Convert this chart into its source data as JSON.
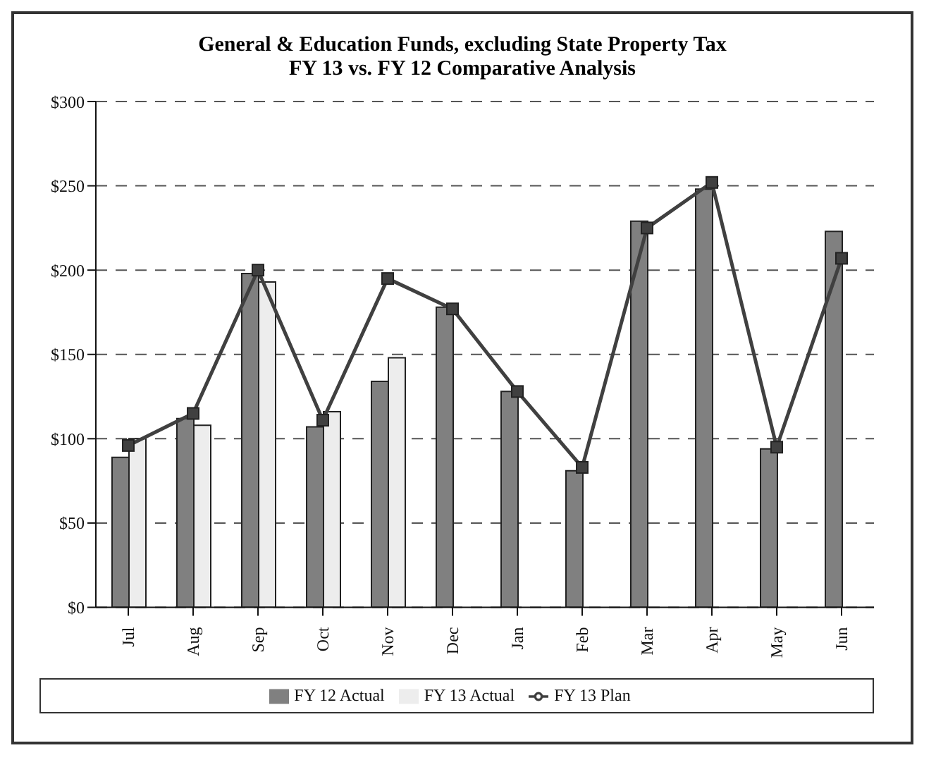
{
  "chart_data": {
    "type": "bar",
    "title": "General & Education Funds, excluding State Property Tax",
    "subtitle": "FY 13 vs. FY 12 Comparative Analysis",
    "categories": [
      "Jul",
      "Aug",
      "Sep",
      "Oct",
      "Nov",
      "Dec",
      "Jan",
      "Feb",
      "Mar",
      "Apr",
      "May",
      "Jun"
    ],
    "series": [
      {
        "name": "FY 12 Actual",
        "color": "#808080",
        "values": [
          89,
          112,
          198,
          107,
          134,
          178,
          128,
          81,
          229,
          248,
          94,
          223
        ]
      },
      {
        "name": "FY 13 Actual",
        "color": "#ededed",
        "values": [
          100,
          108,
          193,
          116,
          148,
          null,
          null,
          null,
          null,
          null,
          null,
          null
        ]
      },
      {
        "name": "FY 13 Plan",
        "type": "line",
        "color": "#404040",
        "values": [
          96,
          115,
          200,
          111,
          195,
          177,
          128,
          83,
          225,
          252,
          95,
          207
        ]
      }
    ],
    "ylim": [
      0,
      300
    ],
    "yticks": [
      {
        "value": 0,
        "label": "$0"
      },
      {
        "value": 50,
        "label": "$50"
      },
      {
        "value": 100,
        "label": "$100"
      },
      {
        "value": 150,
        "label": "$150"
      },
      {
        "value": 200,
        "label": "$200"
      },
      {
        "value": 250,
        "label": "$250"
      },
      {
        "value": 300,
        "label": "$300"
      }
    ],
    "grid": "y",
    "legend": "bottom",
    "marker": "square",
    "line_style": "solid"
  }
}
